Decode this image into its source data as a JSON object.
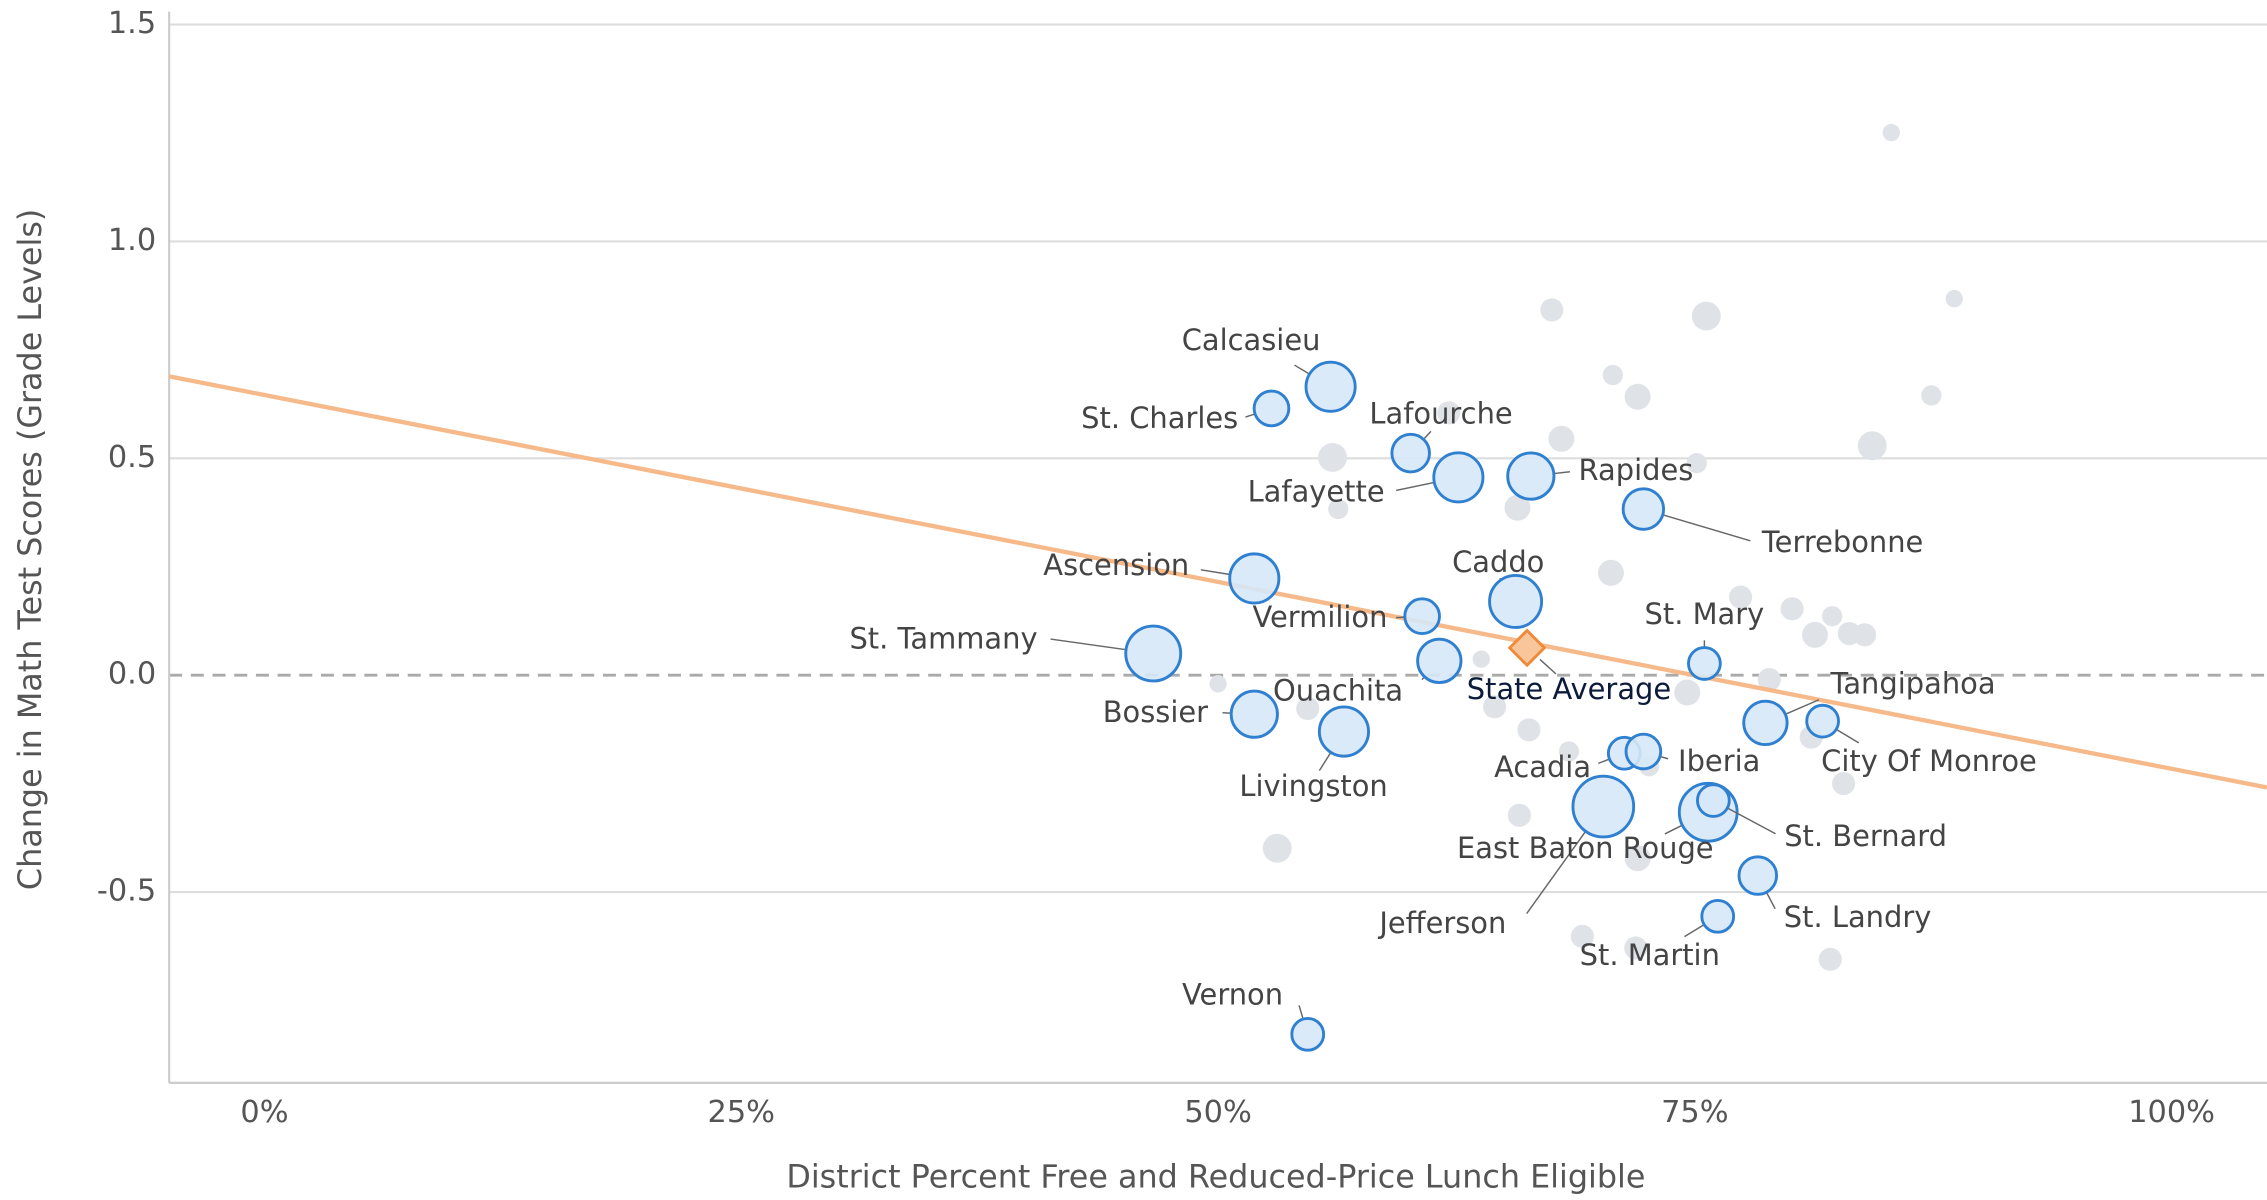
{
  "chart_data": {
    "type": "scatter",
    "x_label": "District Percent Free and Reduced-Price Lunch Eligible",
    "y_label": "Change in Math Test Scores (Grade Levels)",
    "xlim": [
      -5,
      105
    ],
    "xticks": [
      {
        "value": 0,
        "label": "0%"
      },
      {
        "value": 25,
        "label": "25%"
      },
      {
        "value": 50,
        "label": "50%"
      },
      {
        "value": 75,
        "label": "75%"
      },
      {
        "value": 100,
        "label": "100%"
      }
    ],
    "ylim": [
      -0.94,
      1.53
    ],
    "yticks": [
      -0.5,
      {
        "value": 0,
        "label": "0.0"
      },
      0.5,
      {
        "value": 1,
        "label": "1.0"
      },
      1.5
    ],
    "grid": true,
    "labeled_color": "#d6e8f8",
    "labeled_edge": "#2f80d1",
    "other_color": "#dfe3e8",
    "labeled_points": [
      {
        "label": "Calcasieu",
        "x": 55.9,
        "y": 0.665,
        "size": 17
      },
      {
        "label": "St. Charles",
        "x": 52.8,
        "y": 0.615,
        "size": 12
      },
      {
        "label": "Lafourche",
        "x": 60.1,
        "y": 0.512,
        "size": 13
      },
      {
        "label": "Lafayette",
        "x": 62.6,
        "y": 0.456,
        "size": 17
      },
      {
        "label": "Rapides",
        "x": 66.4,
        "y": 0.459,
        "size": 16
      },
      {
        "label": "Terrebonne",
        "x": 72.3,
        "y": 0.383,
        "size": 14
      },
      {
        "label": "Ascension",
        "x": 51.9,
        "y": 0.223,
        "size": 17
      },
      {
        "label": "Caddo",
        "x": 65.6,
        "y": 0.17,
        "size": 18
      },
      {
        "label": "Vermilion",
        "x": 60.7,
        "y": 0.136,
        "size": 12
      },
      {
        "label": "St. Tammany",
        "x": 46.6,
        "y": 0.05,
        "size": 19
      },
      {
        "label": "St. Mary",
        "x": 75.5,
        "y": 0.027,
        "size": 11
      },
      {
        "label": "Ouachita",
        "x": 61.6,
        "y": 0.033,
        "size": 15
      },
      {
        "label": "Tangipahoa",
        "x": 78.7,
        "y": -0.11,
        "size": 15
      },
      {
        "label": "City Of Monroe",
        "x": 81.7,
        "y": -0.106,
        "size": 11
      },
      {
        "label": "Bossier",
        "x": 51.9,
        "y": -0.09,
        "size": 16
      },
      {
        "label": "Livingston",
        "x": 56.6,
        "y": -0.13,
        "size": 17
      },
      {
        "label": "Acadia",
        "x": 71.3,
        "y": -0.18,
        "size": 11
      },
      {
        "label": "Iberia",
        "x": 72.3,
        "y": -0.176,
        "size": 12
      },
      {
        "label": "Jefferson",
        "x": 70.2,
        "y": -0.303,
        "size": 21
      },
      {
        "label": "East Baton Rouge",
        "x": 75.7,
        "y": -0.316,
        "size": 20
      },
      {
        "label": "St. Bernard",
        "x": 75.97,
        "y": -0.289,
        "size": 11
      },
      {
        "label": "St. Landry",
        "x": 78.3,
        "y": -0.462,
        "size": 13
      },
      {
        "label": "St. Martin",
        "x": 76.2,
        "y": -0.556,
        "size": 11
      },
      {
        "label": "Vernon",
        "x": 54.7,
        "y": -0.828,
        "size": 11
      }
    ],
    "other_points": [
      {
        "x": 85.3,
        "y": 1.251,
        "size": 6
      },
      {
        "x": 67.5,
        "y": 0.842,
        "size": 8
      },
      {
        "x": 75.6,
        "y": 0.828,
        "size": 10
      },
      {
        "x": 88.6,
        "y": 0.868,
        "size": 6
      },
      {
        "x": 70.7,
        "y": 0.692,
        "size": 7
      },
      {
        "x": 72.0,
        "y": 0.642,
        "size": 9
      },
      {
        "x": 87.4,
        "y": 0.645,
        "size": 7
      },
      {
        "x": 62.1,
        "y": 0.605,
        "size": 8
      },
      {
        "x": 68.0,
        "y": 0.545,
        "size": 9
      },
      {
        "x": 84.3,
        "y": 0.529,
        "size": 10
      },
      {
        "x": 56.0,
        "y": 0.502,
        "size": 10
      },
      {
        "x": 75.1,
        "y": 0.489,
        "size": 7
      },
      {
        "x": 56.3,
        "y": 0.383,
        "size": 7
      },
      {
        "x": 65.7,
        "y": 0.386,
        "size": 9
      },
      {
        "x": 70.6,
        "y": 0.236,
        "size": 9
      },
      {
        "x": 77.4,
        "y": 0.18,
        "size": 8
      },
      {
        "x": 80.1,
        "y": 0.153,
        "size": 8
      },
      {
        "x": 82.2,
        "y": 0.136,
        "size": 7
      },
      {
        "x": 81.3,
        "y": 0.093,
        "size": 9
      },
      {
        "x": 83.1,
        "y": 0.096,
        "size": 8
      },
      {
        "x": 83.9,
        "y": 0.093,
        "size": 8
      },
      {
        "x": 63.8,
        "y": 0.037,
        "size": 6
      },
      {
        "x": 50.0,
        "y": -0.02,
        "size": 6
      },
      {
        "x": 78.9,
        "y": -0.01,
        "size": 8
      },
      {
        "x": 74.6,
        "y": -0.04,
        "size": 9
      },
      {
        "x": 54.7,
        "y": -0.077,
        "size": 8
      },
      {
        "x": 64.5,
        "y": -0.073,
        "size": 8
      },
      {
        "x": 66.3,
        "y": -0.126,
        "size": 8
      },
      {
        "x": 68.4,
        "y": -0.176,
        "size": 7
      },
      {
        "x": 72.6,
        "y": -0.21,
        "size": 7
      },
      {
        "x": 81.1,
        "y": -0.143,
        "size": 8
      },
      {
        "x": 82.8,
        "y": -0.25,
        "size": 8
      },
      {
        "x": 65.8,
        "y": -0.323,
        "size": 8
      },
      {
        "x": 72.0,
        "y": -0.422,
        "size": 9
      },
      {
        "x": 53.1,
        "y": -0.399,
        "size": 10
      },
      {
        "x": 69.1,
        "y": -0.602,
        "size": 8
      },
      {
        "x": 71.9,
        "y": -0.629,
        "size": 8
      },
      {
        "x": 82.1,
        "y": -0.655,
        "size": 8
      }
    ],
    "state_average": {
      "label": "State Average",
      "x": 66.2,
      "y": 0.063,
      "color": "#f8c69a",
      "edge": "#ee8a3a"
    },
    "trendline": {
      "x": [
        -5,
        105
      ],
      "y": [
        0.689,
        -0.259
      ],
      "color": "#f6b98a"
    }
  }
}
